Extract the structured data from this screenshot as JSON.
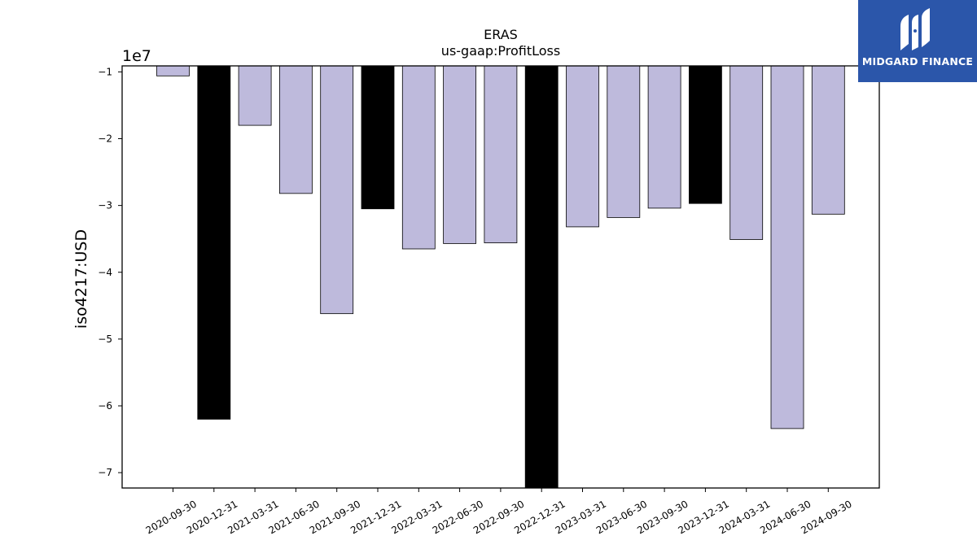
{
  "chart_data": {
    "type": "bar",
    "title": "ERAS",
    "subtitle": "us-gaap:ProfitLoss",
    "ylabel": "iso4217:USD",
    "xlabel": "",
    "y_scale_label": "1e7",
    "scale_factor": 10000000,
    "ylim": [
      -7.23,
      -0.91
    ],
    "yticks": [
      -1,
      -2,
      -3,
      -4,
      -5,
      -6,
      -7
    ],
    "categories": [
      "2020-09-30",
      "2020-12-31",
      "2021-03-31",
      "2021-06-30",
      "2021-09-30",
      "2021-12-31",
      "2022-03-31",
      "2022-06-30",
      "2022-09-30",
      "2022-12-31",
      "2023-03-31",
      "2023-06-30",
      "2023-09-30",
      "2023-12-31",
      "2024-03-31",
      "2024-06-30",
      "2024-09-30"
    ],
    "values": [
      -10600000,
      -62000000,
      -18000000,
      -28200000,
      -46200000,
      -30500000,
      -36500000,
      -35700000,
      -35600000,
      -72300000,
      -33200000,
      -31800000,
      -30400000,
      -29700000,
      -35100000,
      -63400000,
      -31300000
    ],
    "bar_colors": [
      "#bebadc",
      "#000000",
      "#bebadc",
      "#bebadc",
      "#bebadc",
      "#000000",
      "#bebadc",
      "#bebadc",
      "#bebadc",
      "#000000",
      "#bebadc",
      "#bebadc",
      "#bebadc",
      "#000000",
      "#bebadc",
      "#bebadc",
      "#bebadc"
    ],
    "grid": false,
    "legend": "none"
  },
  "logo": {
    "text": "MIDGARD FINANCE",
    "color": "#2b56aa"
  }
}
